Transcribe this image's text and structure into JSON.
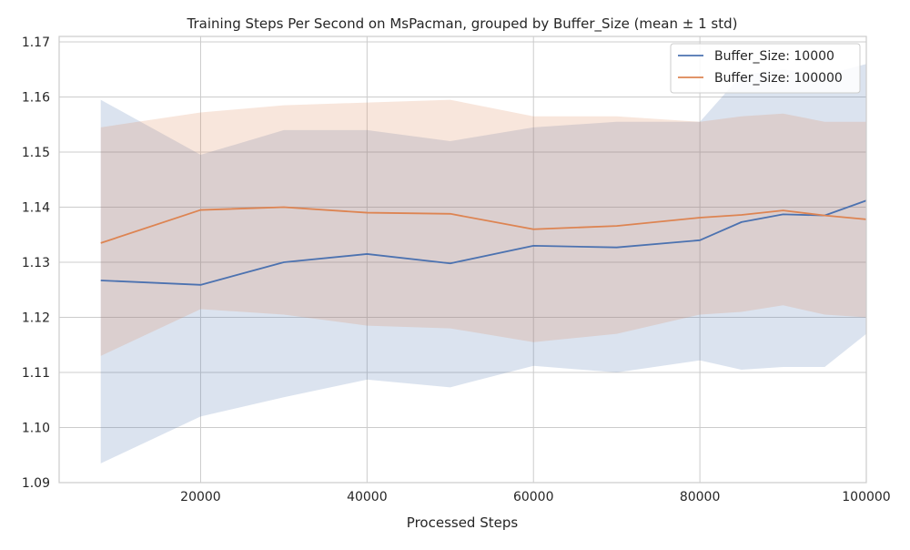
{
  "chart_data": {
    "type": "line",
    "title": "Training Steps Per Second on MsPacman, grouped by Buffer_Size (mean ± 1 std)",
    "xlabel": "Processed Steps",
    "ylabel": "",
    "xlim": [
      3000,
      100000
    ],
    "ylim": [
      1.09,
      1.171
    ],
    "x_ticks": [
      20000,
      40000,
      60000,
      80000,
      100000
    ],
    "x_tick_labels": [
      "20000",
      "40000",
      "60000",
      "80000",
      "100000"
    ],
    "y_ticks": [
      1.09,
      1.1,
      1.11,
      1.12,
      1.13,
      1.14,
      1.15,
      1.16,
      1.17
    ],
    "y_tick_labels": [
      "1.09",
      "1.10",
      "1.11",
      "1.12",
      "1.13",
      "1.14",
      "1.15",
      "1.16",
      "1.17"
    ],
    "grid": true,
    "legend_position": "top-right",
    "x": [
      8000,
      20000,
      30000,
      40000,
      50000,
      60000,
      70000,
      80000,
      85000,
      90000,
      95000,
      100000
    ],
    "series": [
      {
        "name": "Buffer_Size: 10000",
        "color": "#4c72b0",
        "band_color": "#4c72b0",
        "mean": [
          1.1267,
          1.1259,
          1.13,
          1.1315,
          1.1298,
          1.133,
          1.1327,
          1.134,
          1.1373,
          1.1387,
          1.1385,
          1.1412
        ],
        "upper": [
          1.1595,
          1.1495,
          1.154,
          1.154,
          1.152,
          1.1545,
          1.1555,
          1.1555,
          1.164,
          1.165,
          1.164,
          1.166
        ],
        "lower": [
          1.0935,
          1.102,
          1.1055,
          1.1087,
          1.1073,
          1.1112,
          1.11,
          1.1122,
          1.1105,
          1.111,
          1.111,
          1.117
        ]
      },
      {
        "name": "Buffer_Size: 100000",
        "color": "#dd8452",
        "band_color": "#dd8452",
        "mean": [
          1.1335,
          1.1395,
          1.14,
          1.139,
          1.1388,
          1.136,
          1.1366,
          1.1381,
          1.1386,
          1.1394,
          1.1385,
          1.1378
        ],
        "upper": [
          1.1545,
          1.1572,
          1.1585,
          1.159,
          1.1595,
          1.1565,
          1.1565,
          1.1555,
          1.1565,
          1.157,
          1.1555,
          1.1555
        ],
        "lower": [
          1.113,
          1.1215,
          1.1205,
          1.1185,
          1.118,
          1.1155,
          1.117,
          1.1205,
          1.121,
          1.1222,
          1.1205,
          1.12
        ]
      }
    ]
  }
}
